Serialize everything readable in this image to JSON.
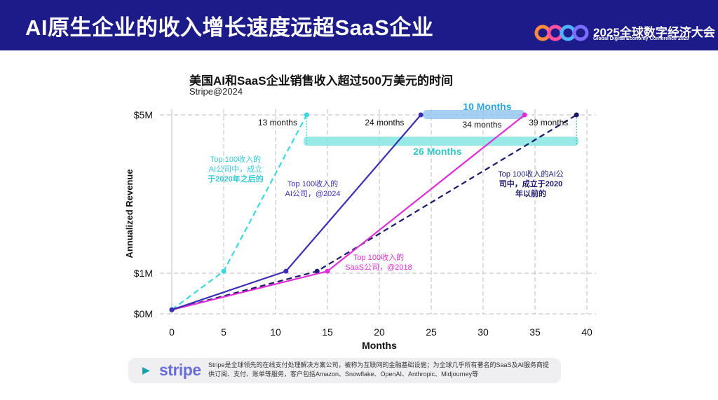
{
  "header": {
    "title": "AI原生企业的收入增长速度远超SaaS企业",
    "conference_name": "2025全球数字经济大会",
    "conference_subtitle": "Global Digital Economy Conference 2025"
  },
  "colors": {
    "header_bg": "#1d1b8a",
    "ai_post2020": "#3ad8e0",
    "ai_all": "#3b2fb5",
    "saas": "#e02fd6",
    "ai_pre2020": "#1c1a6b",
    "highlight_blue": "#8fc3f0",
    "highlight_cyan": "#7fe3e0"
  },
  "chart_data": {
    "type": "line",
    "title": "美国AI和SaaS企业销售收入超过500万美元的时间",
    "subtitle": "Stripe@2024",
    "xlabel": "Months",
    "ylabel": "Annualized Revenue",
    "xlim": [
      0,
      40
    ],
    "ylim": [
      0,
      5
    ],
    "x_ticks": [
      0,
      5,
      10,
      15,
      20,
      25,
      30,
      35,
      40
    ],
    "y_ticks": [
      0,
      1,
      5
    ],
    "y_tick_labels": [
      "$0M",
      "$1M",
      "$5M"
    ],
    "grid": "dashed",
    "series": [
      {
        "key": "ai_post2020",
        "name": "Top 100收入的AI公司中，成立于2020年之后的",
        "style": "dashed",
        "points": [
          [
            0,
            0.1
          ],
          [
            5,
            1.05
          ],
          [
            13,
            5
          ]
        ]
      },
      {
        "key": "ai_all",
        "name": "Top 100收入的AI公司，@2024",
        "style": "solid",
        "points": [
          [
            0,
            0.1
          ],
          [
            11,
            1.05
          ],
          [
            24,
            5
          ]
        ]
      },
      {
        "key": "saas",
        "name": "Top 100收入的SaaS公司，@2018",
        "style": "solid",
        "points": [
          [
            0,
            0.1
          ],
          [
            15,
            1.05
          ],
          [
            34,
            5
          ]
        ]
      },
      {
        "key": "ai_pre2020",
        "name": "Top 100收入的AI公司中，成立于2020年以前的",
        "style": "dashed",
        "points": [
          [
            0,
            0.1
          ],
          [
            14,
            1.05
          ],
          [
            39,
            5
          ]
        ]
      }
    ],
    "annotations": {
      "time_labels": [
        "13 months",
        "24 months",
        "34 months",
        "39 months"
      ],
      "gap_10": "10 Months",
      "gap_26": "26 Months",
      "label_ai_post2020": [
        "Top 100收入的",
        "AI公司中，成立",
        "于2020年之后的"
      ],
      "label_ai_all": [
        "Top 100收入的",
        "AI公司，@2024"
      ],
      "label_saas": [
        "Top 100收入的",
        "SaaS公司，@2018"
      ],
      "label_ai_pre2020": [
        "Top 100收入的AI公",
        "司中，成立于2020",
        "年以前的"
      ]
    }
  },
  "footer": {
    "logo": "stripe",
    "text": "Stripe是全球领先的在线支付处理解决方案公司，被称为互联网的金融基础设施；为全球几乎所有著名的SaaS及AI服务商提供订阅、支付、账单等服务，客户包括Amazon、Snowflake、OpenAI、Anthropic、Midjourney等"
  }
}
